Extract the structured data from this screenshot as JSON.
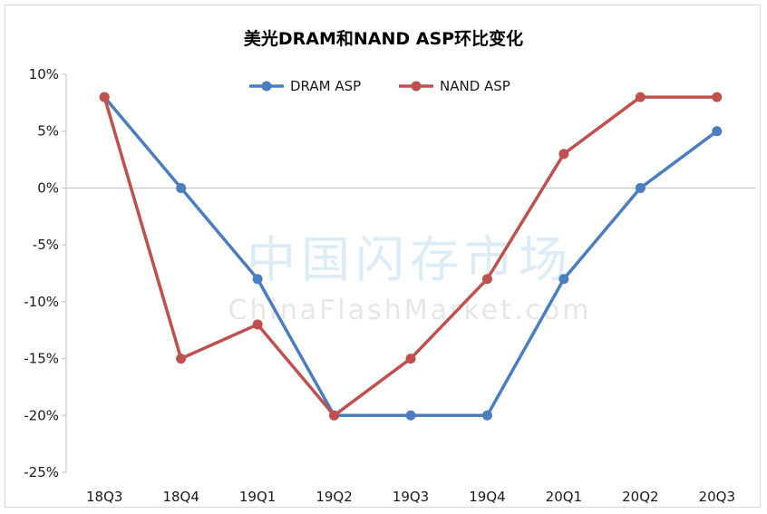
{
  "chart_data": {
    "type": "line",
    "title": "美光DRAM和NAND ASP环比变化",
    "categories": [
      "18Q3",
      "18Q4",
      "19Q1",
      "19Q2",
      "19Q3",
      "19Q4",
      "20Q1",
      "20Q2",
      "20Q3"
    ],
    "yticks": [
      "10%",
      "5%",
      "0%",
      "-5%",
      "-10%",
      "-15%",
      "-20%",
      "-25%"
    ],
    "ylim": [
      -25,
      10
    ],
    "y_unit": "%",
    "grid": false,
    "legend_position": "top-center",
    "series": [
      {
        "name": "DRAM ASP",
        "color": "#4a7ebf",
        "values": [
          8,
          0,
          -8,
          -20,
          -20,
          -20,
          -8,
          0,
          5
        ]
      },
      {
        "name": "NAND ASP",
        "color": "#c0504d",
        "values": [
          8,
          -15,
          -12,
          -20,
          -15,
          -8,
          3,
          8,
          8
        ]
      }
    ]
  },
  "watermark": {
    "cn": "中国闪存市场",
    "en": "ChinaFlashMarket.com"
  }
}
